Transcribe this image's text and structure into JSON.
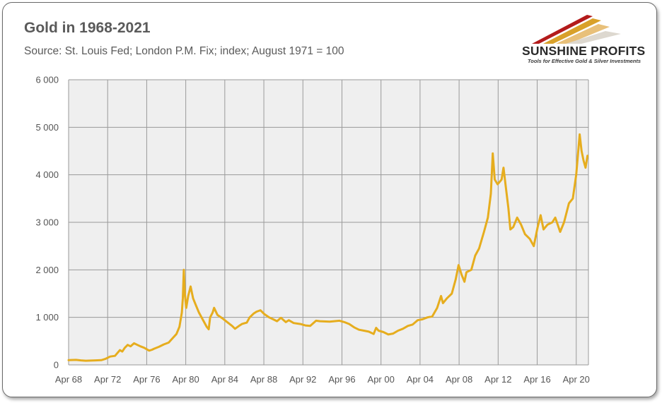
{
  "header": {
    "title": "Gold in 1968-2021",
    "subtitle": "Source: St. Louis Fed; London P.M. Fix; index; August 1971 = 100"
  },
  "logo": {
    "name": "SUNSHINE PROFITS",
    "tagline": "Tools for Effective Gold & Silver Investments"
  },
  "colors": {
    "line": "#E6AD1E",
    "plot_bg": "#EFEFEF",
    "grid": "#9a9a9a",
    "text": "#555555"
  },
  "chart_data": {
    "type": "line",
    "title": "Gold in 1968-2021",
    "xlabel": "",
    "ylabel": "",
    "xlim": [
      1968.25,
      2021.5
    ],
    "ylim": [
      0,
      6000
    ],
    "grid": true,
    "legend": "none",
    "x_ticks": [
      {
        "x": 1968.25,
        "label": "Apr 68"
      },
      {
        "x": 1972.25,
        "label": "Apr 72"
      },
      {
        "x": 1976.25,
        "label": "Apr 76"
      },
      {
        "x": 1980.25,
        "label": "Apr 80"
      },
      {
        "x": 1984.25,
        "label": "Apr 84"
      },
      {
        "x": 1988.25,
        "label": "Apr 88"
      },
      {
        "x": 1992.25,
        "label": "Apr 92"
      },
      {
        "x": 1996.25,
        "label": "Apr 96"
      },
      {
        "x": 2000.25,
        "label": "Apr 00"
      },
      {
        "x": 2004.25,
        "label": "Apr 04"
      },
      {
        "x": 2008.25,
        "label": "Apr 08"
      },
      {
        "x": 2012.25,
        "label": "Apr 12"
      },
      {
        "x": 2016.25,
        "label": "Apr 16"
      },
      {
        "x": 2020.25,
        "label": "Apr 20"
      }
    ],
    "y_ticks": [
      {
        "y": 0,
        "label": "0"
      },
      {
        "y": 1000,
        "label": "1 000"
      },
      {
        "y": 2000,
        "label": "2 000"
      },
      {
        "y": 3000,
        "label": "3 000"
      },
      {
        "y": 4000,
        "label": "4 000"
      },
      {
        "y": 5000,
        "label": "5 000"
      },
      {
        "y": 6000,
        "label": "6 000"
      }
    ],
    "series": [
      {
        "points": [
          [
            1968.25,
            100
          ],
          [
            1969.0,
            105
          ],
          [
            1969.5,
            95
          ],
          [
            1970.0,
            88
          ],
          [
            1970.5,
            90
          ],
          [
            1971.0,
            95
          ],
          [
            1971.6,
            100
          ],
          [
            1972.0,
            125
          ],
          [
            1972.5,
            175
          ],
          [
            1973.0,
            190
          ],
          [
            1973.25,
            250
          ],
          [
            1973.5,
            310
          ],
          [
            1973.75,
            280
          ],
          [
            1974.0,
            360
          ],
          [
            1974.3,
            420
          ],
          [
            1974.6,
            390
          ],
          [
            1974.95,
            455
          ],
          [
            1975.3,
            420
          ],
          [
            1975.6,
            390
          ],
          [
            1976.0,
            360
          ],
          [
            1976.5,
            300
          ],
          [
            1976.8,
            320
          ],
          [
            1977.0,
            340
          ],
          [
            1977.5,
            380
          ],
          [
            1978.0,
            430
          ],
          [
            1978.5,
            470
          ],
          [
            1978.9,
            560
          ],
          [
            1979.3,
            650
          ],
          [
            1979.6,
            800
          ],
          [
            1979.85,
            1100
          ],
          [
            1979.95,
            1400
          ],
          [
            1980.05,
            2000
          ],
          [
            1980.15,
            1500
          ],
          [
            1980.3,
            1200
          ],
          [
            1980.5,
            1450
          ],
          [
            1980.75,
            1650
          ],
          [
            1981.0,
            1400
          ],
          [
            1981.3,
            1250
          ],
          [
            1981.6,
            1100
          ],
          [
            1982.0,
            950
          ],
          [
            1982.4,
            800
          ],
          [
            1982.6,
            750
          ],
          [
            1982.75,
            1000
          ],
          [
            1983.0,
            1100
          ],
          [
            1983.15,
            1200
          ],
          [
            1983.5,
            1050
          ],
          [
            1984.0,
            980
          ],
          [
            1984.5,
            900
          ],
          [
            1985.0,
            820
          ],
          [
            1985.3,
            760
          ],
          [
            1985.7,
            820
          ],
          [
            1986.0,
            860
          ],
          [
            1986.5,
            890
          ],
          [
            1986.8,
            1000
          ],
          [
            1987.2,
            1080
          ],
          [
            1987.5,
            1120
          ],
          [
            1987.9,
            1150
          ],
          [
            1988.3,
            1070
          ],
          [
            1988.8,
            1000
          ],
          [
            1989.2,
            960
          ],
          [
            1989.6,
            920
          ],
          [
            1990.0,
            990
          ],
          [
            1990.5,
            900
          ],
          [
            1990.8,
            940
          ],
          [
            1991.3,
            880
          ],
          [
            1992.0,
            860
          ],
          [
            1992.5,
            830
          ],
          [
            1993.0,
            820
          ],
          [
            1993.6,
            930
          ],
          [
            1994.0,
            920
          ],
          [
            1995.0,
            910
          ],
          [
            1996.0,
            930
          ],
          [
            1996.5,
            900
          ],
          [
            1997.0,
            860
          ],
          [
            1997.5,
            790
          ],
          [
            1998.0,
            740
          ],
          [
            1998.5,
            720
          ],
          [
            1999.0,
            700
          ],
          [
            1999.5,
            650
          ],
          [
            1999.75,
            780
          ],
          [
            2000.0,
            720
          ],
          [
            2000.5,
            690
          ],
          [
            2001.0,
            640
          ],
          [
            2001.5,
            660
          ],
          [
            2002.0,
            720
          ],
          [
            2002.5,
            760
          ],
          [
            2003.0,
            820
          ],
          [
            2003.5,
            850
          ],
          [
            2004.0,
            940
          ],
          [
            2004.5,
            960
          ],
          [
            2005.0,
            1000
          ],
          [
            2005.5,
            1020
          ],
          [
            2006.0,
            1200
          ],
          [
            2006.4,
            1450
          ],
          [
            2006.6,
            1300
          ],
          [
            2007.0,
            1400
          ],
          [
            2007.5,
            1500
          ],
          [
            2007.9,
            1800
          ],
          [
            2008.2,
            2100
          ],
          [
            2008.5,
            1900
          ],
          [
            2008.8,
            1750
          ],
          [
            2009.0,
            1950
          ],
          [
            2009.5,
            2000
          ],
          [
            2009.9,
            2300
          ],
          [
            2010.3,
            2450
          ],
          [
            2010.8,
            2800
          ],
          [
            2011.2,
            3100
          ],
          [
            2011.5,
            3600
          ],
          [
            2011.7,
            4450
          ],
          [
            2011.9,
            3900
          ],
          [
            2012.2,
            3800
          ],
          [
            2012.6,
            3900
          ],
          [
            2012.8,
            4150
          ],
          [
            2013.0,
            3800
          ],
          [
            2013.3,
            3300
          ],
          [
            2013.5,
            2850
          ],
          [
            2013.8,
            2900
          ],
          [
            2014.2,
            3100
          ],
          [
            2014.6,
            2950
          ],
          [
            2015.0,
            2750
          ],
          [
            2015.5,
            2650
          ],
          [
            2015.9,
            2500
          ],
          [
            2016.3,
            2900
          ],
          [
            2016.6,
            3150
          ],
          [
            2016.9,
            2850
          ],
          [
            2017.3,
            2950
          ],
          [
            2017.8,
            3000
          ],
          [
            2018.1,
            3100
          ],
          [
            2018.6,
            2800
          ],
          [
            2019.0,
            3000
          ],
          [
            2019.5,
            3400
          ],
          [
            2019.9,
            3500
          ],
          [
            2020.25,
            4000
          ],
          [
            2020.6,
            4850
          ],
          [
            2020.8,
            4500
          ],
          [
            2021.0,
            4300
          ],
          [
            2021.2,
            4150
          ],
          [
            2021.4,
            4400
          ]
        ]
      }
    ]
  }
}
